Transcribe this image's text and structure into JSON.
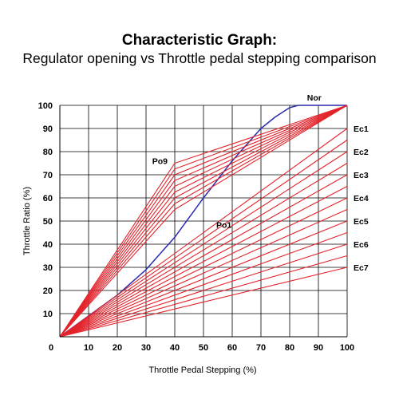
{
  "chart_data": {
    "type": "line",
    "title": "Characteristic Graph:",
    "subtitle": "Regulator opening vs Throttle pedal stepping comparison",
    "xlabel": "Throttle Pedal Stepping (%)",
    "ylabel": "Throttle Ratio (%)",
    "xlim": [
      0,
      100
    ],
    "ylim": [
      0,
      100
    ],
    "x_ticks": [
      0,
      10,
      20,
      30,
      40,
      50,
      60,
      70,
      80,
      90,
      100
    ],
    "y_ticks": [
      10,
      20,
      30,
      40,
      50,
      60,
      70,
      80,
      90,
      100
    ],
    "grid": true,
    "colors": {
      "eco_power": "#e3232b",
      "normal": "#2b2bb0",
      "grid": "#000000"
    },
    "series": [
      {
        "name": "Nor",
        "kind": "normal",
        "x": [
          0,
          10,
          20,
          30,
          40,
          50,
          60,
          70,
          75,
          80,
          83,
          85,
          90,
          100
        ],
        "y": [
          0,
          9,
          18,
          29,
          43,
          60,
          76,
          90,
          95,
          99,
          100,
          100,
          100,
          100
        ]
      },
      {
        "name": "Po9",
        "kind": "power",
        "x": [
          0,
          40,
          100
        ],
        "y": [
          0,
          75,
          100
        ]
      },
      {
        "name": "",
        "kind": "power",
        "x": [
          0,
          40,
          100
        ],
        "y": [
          0,
          72.5,
          100
        ]
      },
      {
        "name": "",
        "kind": "power",
        "x": [
          0,
          40,
          100
        ],
        "y": [
          0,
          70,
          100
        ]
      },
      {
        "name": "",
        "kind": "power",
        "x": [
          0,
          40,
          100
        ],
        "y": [
          0,
          67.5,
          100
        ]
      },
      {
        "name": "",
        "kind": "power",
        "x": [
          0,
          40,
          100
        ],
        "y": [
          0,
          65,
          100
        ]
      },
      {
        "name": "",
        "kind": "power",
        "x": [
          0,
          40,
          100
        ],
        "y": [
          0,
          62.5,
          100
        ]
      },
      {
        "name": "",
        "kind": "power",
        "x": [
          0,
          40,
          100
        ],
        "y": [
          0,
          60,
          100
        ]
      },
      {
        "name": "",
        "kind": "power",
        "x": [
          0,
          40,
          100
        ],
        "y": [
          0,
          57.5,
          100
        ]
      },
      {
        "name": "Po1",
        "kind": "power",
        "x": [
          0,
          40,
          100
        ],
        "y": [
          0,
          55,
          100
        ]
      },
      {
        "name": "Ec1",
        "kind": "eco",
        "x": [
          0,
          100
        ],
        "y": [
          0,
          90
        ]
      },
      {
        "name": "",
        "kind": "eco",
        "x": [
          0,
          100
        ],
        "y": [
          0,
          85
        ]
      },
      {
        "name": "Ec2",
        "kind": "eco",
        "x": [
          0,
          100
        ],
        "y": [
          0,
          80
        ]
      },
      {
        "name": "",
        "kind": "eco",
        "x": [
          0,
          100
        ],
        "y": [
          0,
          75
        ]
      },
      {
        "name": "Ec3",
        "kind": "eco",
        "x": [
          0,
          100
        ],
        "y": [
          0,
          70
        ]
      },
      {
        "name": "",
        "kind": "eco",
        "x": [
          0,
          100
        ],
        "y": [
          0,
          65
        ]
      },
      {
        "name": "Ec4",
        "kind": "eco",
        "x": [
          0,
          100
        ],
        "y": [
          0,
          60
        ]
      },
      {
        "name": "",
        "kind": "eco",
        "x": [
          0,
          100
        ],
        "y": [
          0,
          55
        ]
      },
      {
        "name": "Ec5",
        "kind": "eco",
        "x": [
          0,
          100
        ],
        "y": [
          0,
          50
        ]
      },
      {
        "name": "",
        "kind": "eco",
        "x": [
          0,
          100
        ],
        "y": [
          0,
          45
        ]
      },
      {
        "name": "Ec6",
        "kind": "eco",
        "x": [
          0,
          100
        ],
        "y": [
          0,
          40
        ]
      },
      {
        "name": "",
        "kind": "eco",
        "x": [
          0,
          100
        ],
        "y": [
          0,
          35
        ]
      },
      {
        "name": "Ec7",
        "kind": "eco",
        "x": [
          0,
          100
        ],
        "y": [
          0,
          30
        ]
      }
    ]
  }
}
